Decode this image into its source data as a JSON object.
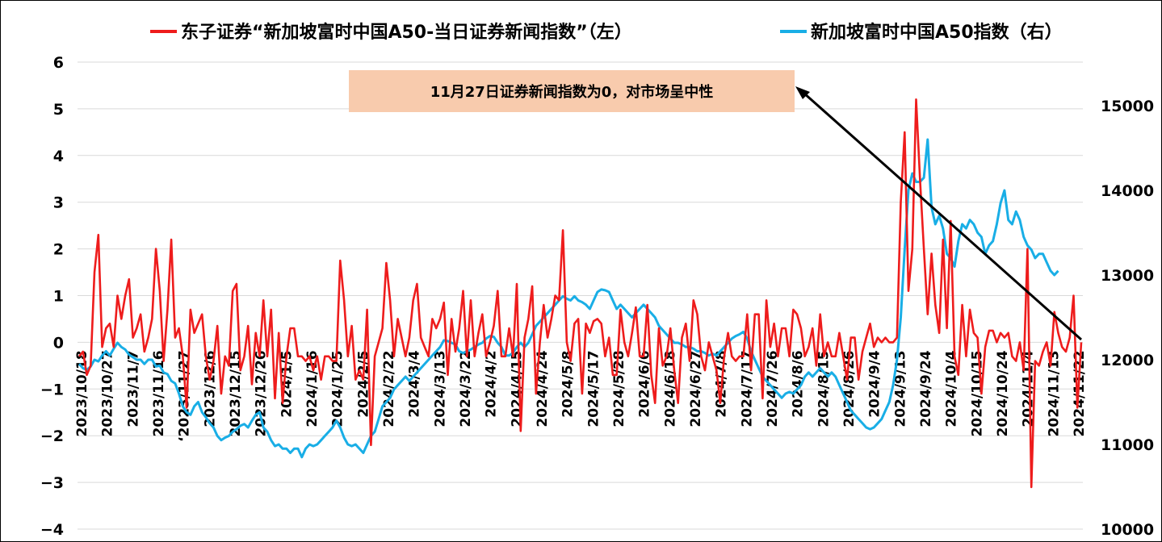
{
  "chart_data": {
    "type": "line",
    "legend": {
      "position": "top",
      "entries": [
        {
          "label": "东子证券“新加坡富时中国A50-当日证券新闻指数”（左）",
          "color": "#ee1c1c"
        },
        {
          "label": "新加坡富时中国A50指数（右）",
          "color": "#19aee6"
        }
      ]
    },
    "axes": {
      "left": {
        "ylim": [
          -4,
          6
        ],
        "ticks": [
          "6",
          "5",
          "4",
          "3",
          "2",
          "1",
          "0",
          "−1",
          "−2",
          "−3",
          "−4"
        ]
      },
      "right": {
        "ylim": [
          10000,
          15500
        ],
        "ticks": [
          "15000",
          "14000",
          "13000",
          "12000",
          "11000",
          "10000"
        ]
      }
    },
    "x_ticks": [
      "2023/10/18",
      "2023/10/27",
      "2023/11/7",
      "2023/11/16",
      "‘2023/11/27",
      "2023/12/6",
      "2023/12/15",
      "2023/12/26",
      "2024/1/5",
      "2024/1/16",
      "2024/1/25",
      "2024/2/5",
      "2024/2/22",
      "2024/3/4",
      "2024/3/13",
      "2024/3/22",
      "2024/4/2",
      "2024/4/15",
      "2024/4/24",
      "2024/5/8",
      "2024/5/17",
      "2024/5/28",
      "2024/6/6",
      "2024/6/18",
      "2024/6/27",
      "2024/7/8",
      "2024/7/17",
      "2024/7/26",
      "2024/8/6",
      "2024/8/15",
      "2024/8/26",
      "2024/9/4",
      "2024/9/13",
      "2024/9/24",
      "2024/10/4",
      "2024/10/15",
      "2024/10/24",
      "2024/11/4",
      "2024/11/13",
      "2024/11/22"
    ],
    "annotation": {
      "text": "11月27日证券新闻指数为0，对市场呈中性",
      "bg": "#f8cbad",
      "arrow_color": "#000000"
    },
    "series": [
      {
        "name": "东子证券“新加坡富时中国A50-当日证券新闻指数”（左）",
        "axis": "left",
        "color": "#ee1c1c",
        "values": [
          -0.3,
          -0.2,
          -0.7,
          -0.5,
          1.5,
          2.3,
          -0.1,
          0.3,
          0.4,
          -0.1,
          1.0,
          0.5,
          1.0,
          1.35,
          0.1,
          0.3,
          0.6,
          -0.2,
          0.1,
          0.5,
          2.0,
          1.1,
          -0.4,
          0.7,
          2.2,
          0.1,
          0.3,
          -0.3,
          -1.4,
          0.7,
          0.2,
          0.4,
          0.6,
          -0.3,
          -0.8,
          -0.4,
          0.35,
          -1.1,
          -0.3,
          -0.5,
          1.1,
          1.25,
          -0.6,
          -0.3,
          0.35,
          -0.9,
          0.2,
          -0.3,
          0.9,
          -0.3,
          0.7,
          -1.2,
          0.2,
          -1.3,
          -0.3,
          0.3,
          0.3,
          -0.3,
          -0.3,
          -0.4,
          -0.3,
          -0.6,
          -0.3,
          -0.8,
          -0.3,
          -0.3,
          -0.4,
          -0.4,
          1.75,
          0.9,
          -0.3,
          0.35,
          -0.8,
          -0.6,
          -0.8,
          0.7,
          -2.2,
          -0.3,
          0.0,
          0.3,
          1.7,
          0.9,
          -0.3,
          0.5,
          0.1,
          -0.3,
          0.1,
          0.9,
          1.25,
          0.1,
          -0.1,
          -0.3,
          0.5,
          0.3,
          0.5,
          0.85,
          -0.7,
          0.5,
          -0.2,
          0.3,
          1.1,
          -0.3,
          0.9,
          -0.3,
          0.2,
          0.6,
          -0.3,
          0.0,
          0.35,
          1.1,
          -0.3,
          -0.3,
          0.3,
          -0.3,
          1.25,
          -1.9,
          0.1,
          0.5,
          1.2,
          -1.1,
          0.0,
          0.8,
          0.1,
          0.5,
          1.0,
          0.9,
          2.4,
          0.0,
          -0.4,
          0.4,
          0.5,
          -1.1,
          0.4,
          0.2,
          0.45,
          0.5,
          0.4,
          -0.3,
          0.1,
          -0.7,
          -0.7,
          0.7,
          0.0,
          -0.3,
          0.2,
          0.75,
          -0.3,
          -0.3,
          0.8,
          -0.7,
          -1.3,
          0.3,
          -0.5,
          -0.3,
          0.3,
          -0.6,
          -1.3,
          0.1,
          0.4,
          -0.4,
          0.9,
          0.6,
          -0.3,
          -0.6,
          0.0,
          -0.3,
          -0.6,
          -1.3,
          -0.3,
          0.2,
          -0.3,
          -0.4,
          -0.3,
          -0.3,
          0.6,
          -0.6,
          0.6,
          0.6,
          -1.2,
          0.9,
          -0.1,
          0.4,
          -0.3,
          0.3,
          0.3,
          -0.3,
          0.7,
          0.6,
          0.3,
          -0.3,
          -0.1,
          0.3,
          -0.5,
          0.6,
          -0.3,
          0.0,
          -0.3,
          -0.3,
          0.2,
          -0.3,
          -0.8,
          0.1,
          0.1,
          -0.8,
          -0.2,
          0.1,
          0.4,
          -0.1,
          0.1,
          0.0,
          0.1,
          0.0,
          0.0,
          0.1,
          3.0,
          4.5,
          1.1,
          2.0,
          5.2,
          3.5,
          2.0,
          0.6,
          1.9,
          0.8,
          0.2,
          2.2,
          0.3,
          2.6,
          -0.3,
          -0.7,
          0.8,
          -0.3,
          0.7,
          0.2,
          0.1,
          -1.1,
          -0.1,
          0.25,
          0.25,
          0.0,
          0.2,
          0.1,
          0.2,
          -0.3,
          -0.4,
          0.0,
          -0.6,
          2.0,
          -3.1,
          -0.4,
          -0.5,
          -0.2,
          0.0,
          -0.5,
          0.65,
          0.2,
          -0.1,
          -0.2,
          0.1,
          1.0,
          -1.4,
          0.0
        ]
      },
      {
        "name": "新加坡富时中国A50指数（右）",
        "axis": "right",
        "color": "#19aee6",
        "values": [
          11950,
          11900,
          11880,
          11920,
          12000,
          11980,
          12050,
          12100,
          12050,
          12130,
          12200,
          12150,
          12120,
          12060,
          12030,
          12000,
          12000,
          11950,
          12000,
          12000,
          11920,
          11930,
          11850,
          11830,
          11750,
          11720,
          11600,
          11450,
          11380,
          11350,
          11450,
          11500,
          11380,
          11320,
          11250,
          11200,
          11100,
          11050,
          11080,
          11100,
          11150,
          11180,
          11220,
          11240,
          11200,
          11280,
          11350,
          11380,
          11200,
          11150,
          11050,
          10980,
          11000,
          10950,
          10950,
          10900,
          10950,
          10950,
          10850,
          10950,
          11000,
          10980,
          11000,
          11050,
          11100,
          11150,
          11200,
          11280,
          11200,
          11080,
          11000,
          10980,
          11000,
          10950,
          10900,
          11000,
          11100,
          11150,
          11300,
          11450,
          11500,
          11550,
          11650,
          11700,
          11750,
          11800,
          11750,
          11800,
          11850,
          11900,
          11950,
          12000,
          12050,
          12100,
          12150,
          12230,
          12220,
          12200,
          12180,
          12100,
          12080,
          12100,
          12120,
          12150,
          12180,
          12200,
          12250,
          12280,
          12270,
          12200,
          12150,
          12050,
          12050,
          12080,
          12150,
          12200,
          12150,
          12200,
          12300,
          12400,
          12450,
          12500,
          12550,
          12600,
          12650,
          12700,
          12750,
          12720,
          12700,
          12750,
          12700,
          12680,
          12650,
          12600,
          12700,
          12800,
          12830,
          12820,
          12800,
          12700,
          12600,
          12650,
          12600,
          12550,
          12500,
          12550,
          12600,
          12650,
          12600,
          12550,
          12500,
          12400,
          12350,
          12300,
          12250,
          12200,
          12200,
          12180,
          12150,
          12150,
          12130,
          12100,
          12100,
          12080,
          12050,
          12070,
          12050,
          12100,
          12150,
          12200,
          12250,
          12280,
          12300,
          12330,
          12250,
          12100,
          12000,
          11900,
          11800,
          11750,
          11700,
          11650,
          11600,
          11550,
          11600,
          11620,
          11600,
          11650,
          11700,
          11800,
          11850,
          11800,
          11850,
          11900,
          11850,
          11800,
          11850,
          11800,
          11700,
          11600,
          11500,
          11400,
          11350,
          11300,
          11250,
          11200,
          11180,
          11200,
          11250,
          11300,
          11400,
          11500,
          11700,
          12000,
          12500,
          13300,
          14000,
          14200,
          14100,
          14100,
          14150,
          14600,
          13800,
          13600,
          13700,
          13550,
          13250,
          13200,
          13100,
          13400,
          13600,
          13550,
          13650,
          13600,
          13500,
          13450,
          13250,
          13350,
          13400,
          13600,
          13850,
          14000,
          13650,
          13600,
          13750,
          13650,
          13450,
          13350,
          13300,
          13200,
          13250,
          13250,
          13150,
          13050,
          13000,
          13050
        ]
      }
    ]
  }
}
